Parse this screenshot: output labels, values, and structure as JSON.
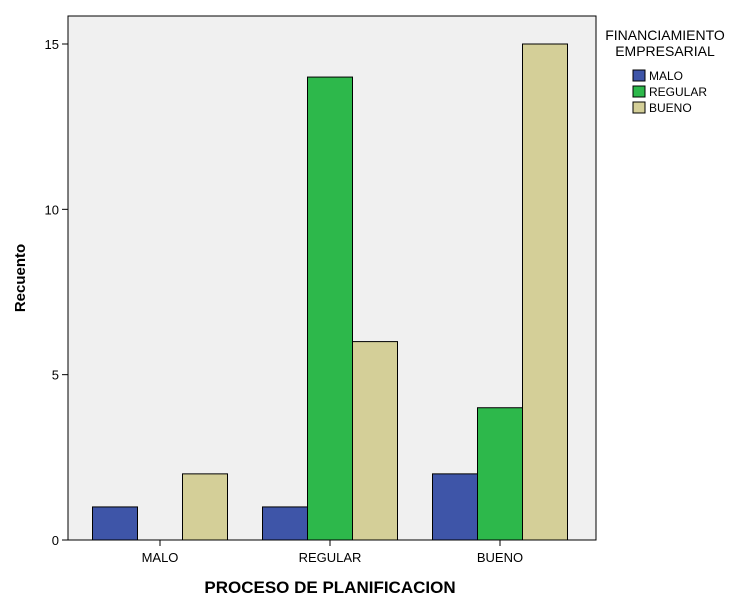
{
  "chart_data": {
    "type": "bar",
    "title": "",
    "xlabel": "PROCESO DE PLANIFICACION",
    "ylabel": "Recuento",
    "categories": [
      "MALO",
      "REGULAR",
      "BUENO"
    ],
    "ylim": [
      0,
      16
    ],
    "yticks": [
      0,
      5,
      10,
      15
    ],
    "grid": false,
    "legend": {
      "title": "FINANCIAMIENTO EMPRESARIAL",
      "title_lines": [
        "FINANCIAMIENTO",
        "EMPRESARIAL"
      ],
      "placement": "right"
    },
    "series": [
      {
        "name": "MALO",
        "color": "#3e55a8",
        "values": [
          1,
          1,
          2
        ]
      },
      {
        "name": "REGULAR",
        "color": "#2db84b",
        "values": [
          0,
          14,
          4
        ]
      },
      {
        "name": "BUENO",
        "color": "#d4cf98",
        "values": [
          2,
          6,
          15
        ]
      }
    ],
    "plot_background": "#f0f0f0"
  }
}
